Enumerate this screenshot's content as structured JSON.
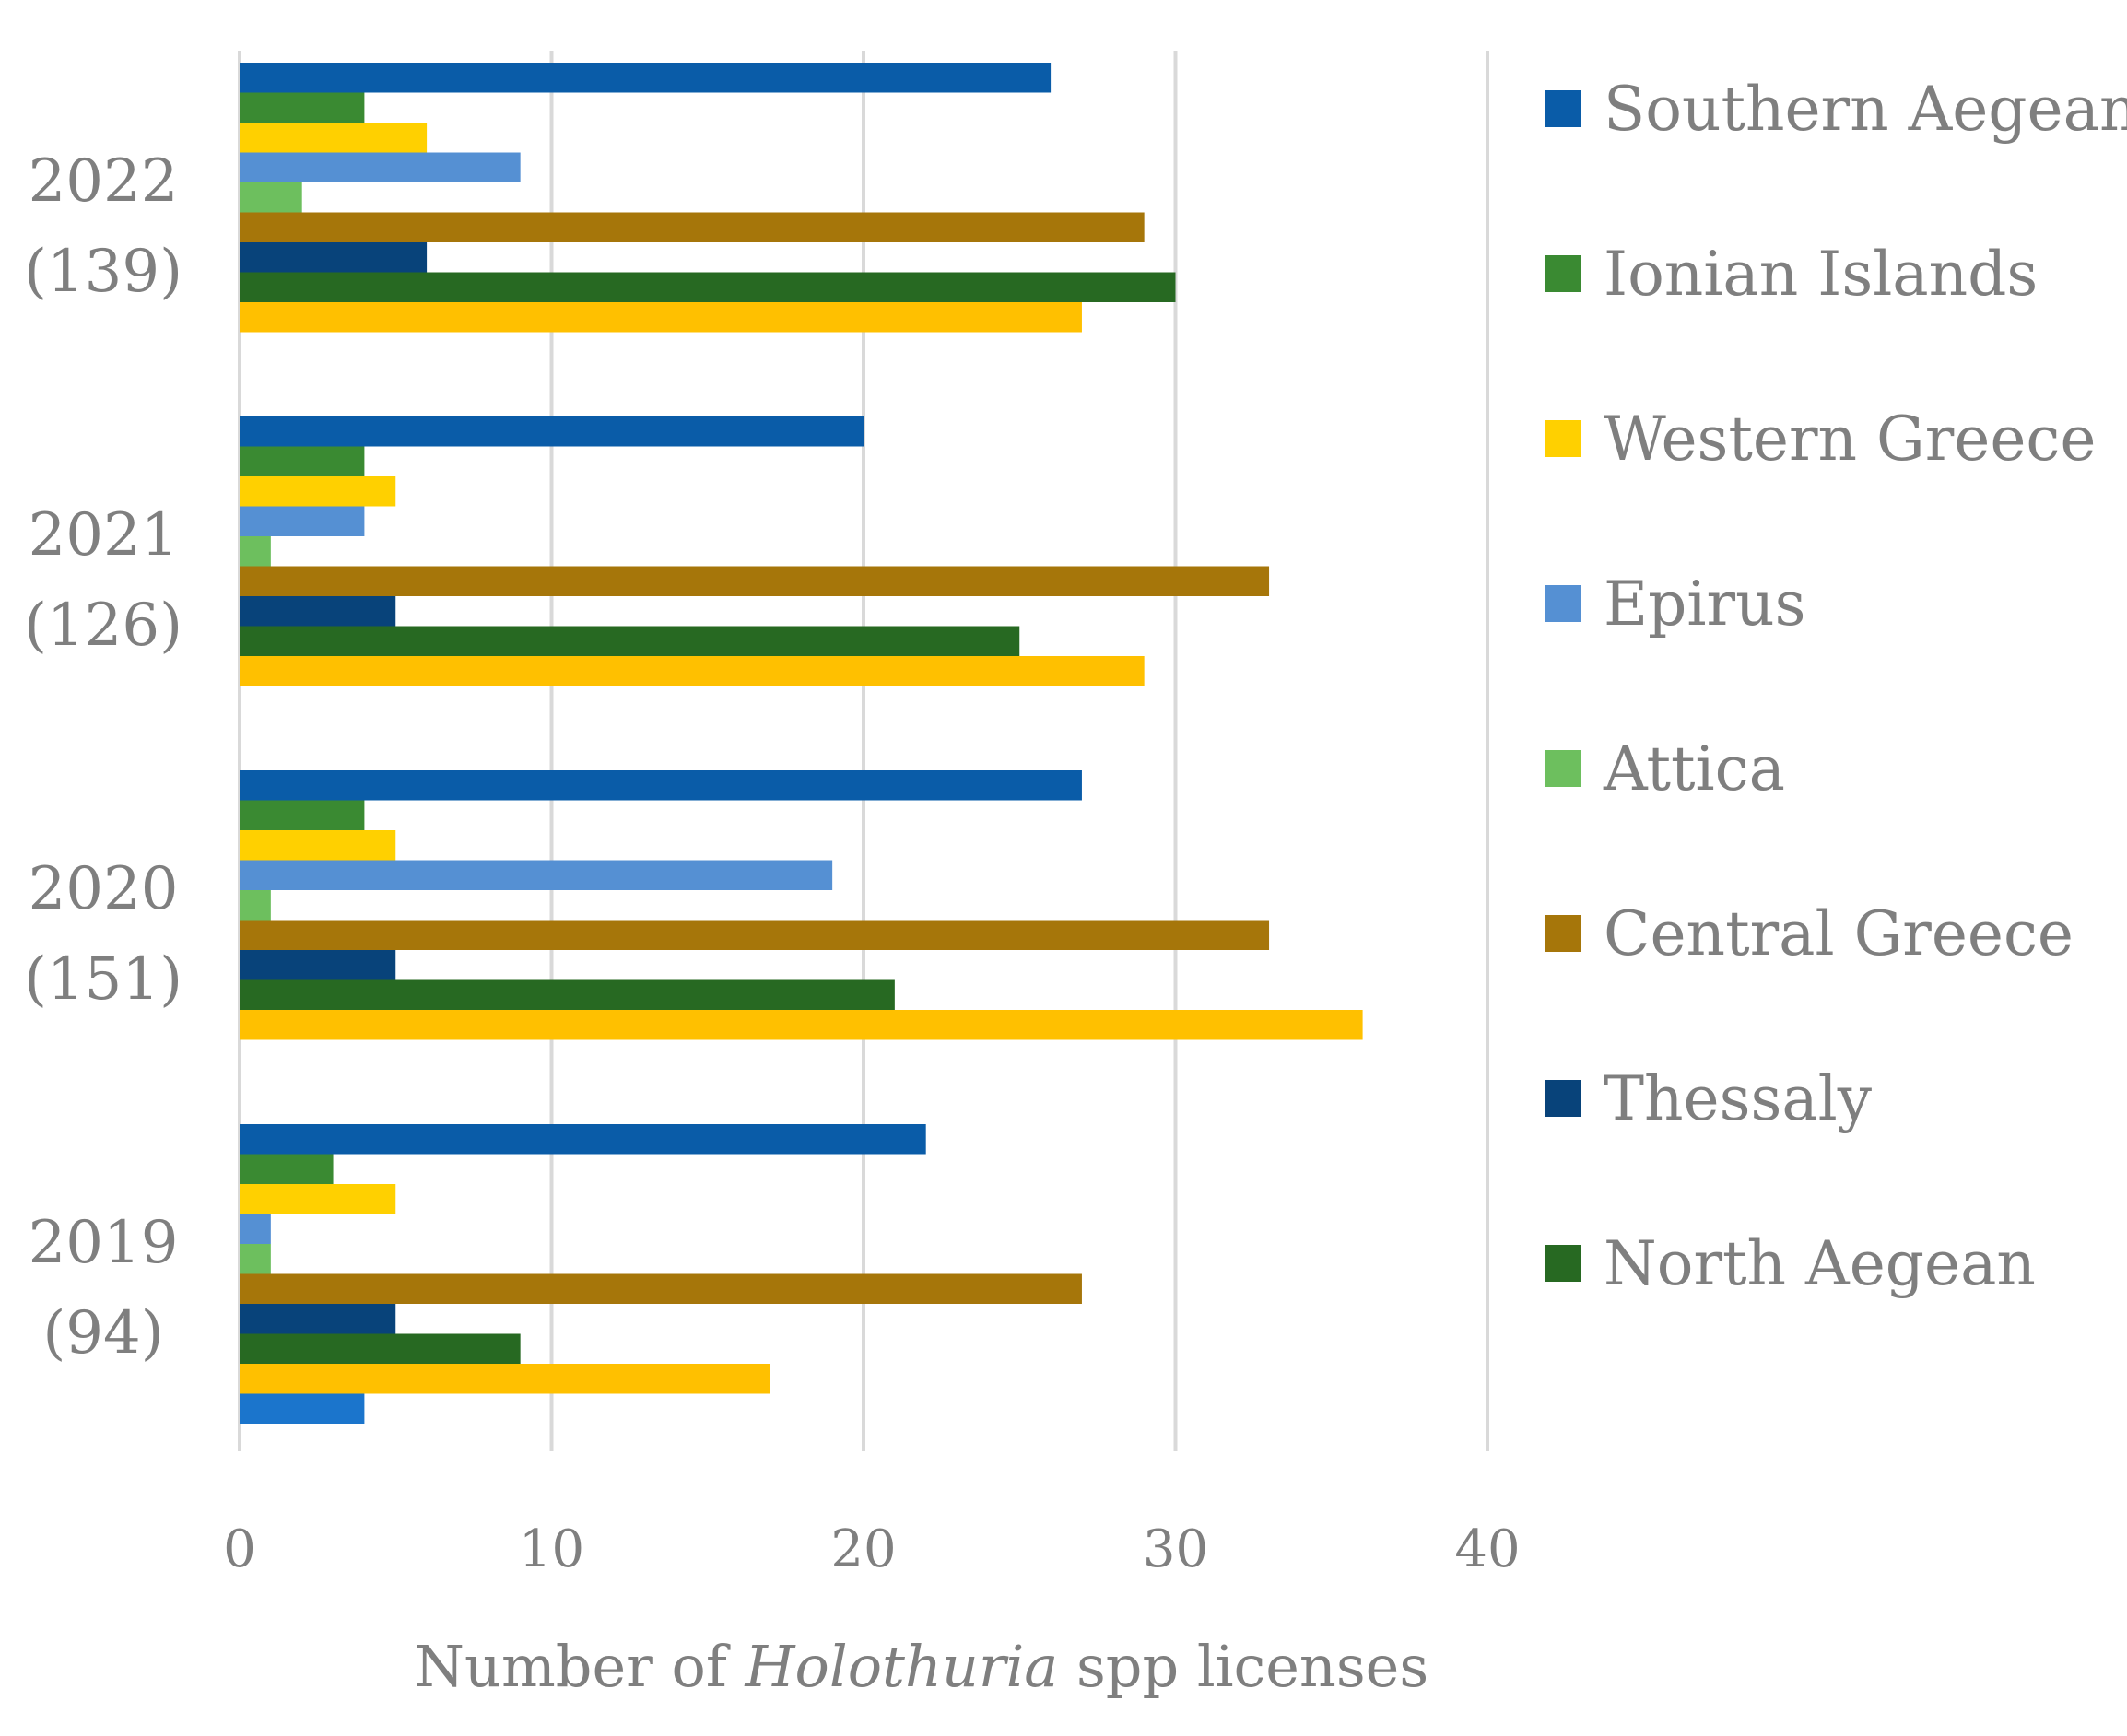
{
  "chart_data": {
    "type": "bar",
    "orientation": "horizontal",
    "xlabel_parts": [
      "Number of ",
      "Holothuria",
      " spp licenses"
    ],
    "xlim": [
      0,
      40
    ],
    "xticks": [
      0,
      10,
      20,
      30,
      40
    ],
    "grid": true,
    "legend_position": "right",
    "categories": [
      {
        "year": "2022",
        "total": "(139)"
      },
      {
        "year": "2021",
        "total": "(126)"
      },
      {
        "year": "2020",
        "total": "(151)"
      },
      {
        "year": "2019",
        "total": "(94)"
      }
    ],
    "series": [
      {
        "name": "Southern Aegean",
        "color": "#0A5CA8",
        "values": [
          26,
          20,
          27,
          22
        ],
        "in_legend": true
      },
      {
        "name": "Ionian Islands",
        "color": "#3A8A32",
        "values": [
          4,
          4,
          4,
          3
        ],
        "in_legend": true
      },
      {
        "name": "Western Greece",
        "color": "#FFD000",
        "values": [
          6,
          5,
          5,
          5
        ],
        "in_legend": true
      },
      {
        "name": "Epirus",
        "color": "#5590D3",
        "values": [
          9,
          4,
          19,
          1
        ],
        "in_legend": true
      },
      {
        "name": "Attica",
        "color": "#6DBF5E",
        "values": [
          2,
          1,
          1,
          1
        ],
        "in_legend": true
      },
      {
        "name": "Central Greece",
        "color": "#A6760A",
        "values": [
          29,
          33,
          33,
          27
        ],
        "in_legend": true
      },
      {
        "name": "Thessaly",
        "color": "#08437A",
        "values": [
          6,
          5,
          5,
          5
        ],
        "in_legend": true
      },
      {
        "name": "North Aegean",
        "color": "#276922",
        "values": [
          30,
          25,
          21,
          9
        ],
        "in_legend": true
      },
      {
        "name": "",
        "color": "#FFC000",
        "values": [
          27,
          29,
          36,
          17
        ],
        "in_legend": false
      },
      {
        "name": "",
        "color": "#1B75CC",
        "values": [
          null,
          null,
          null,
          4
        ],
        "in_legend": false
      }
    ]
  }
}
